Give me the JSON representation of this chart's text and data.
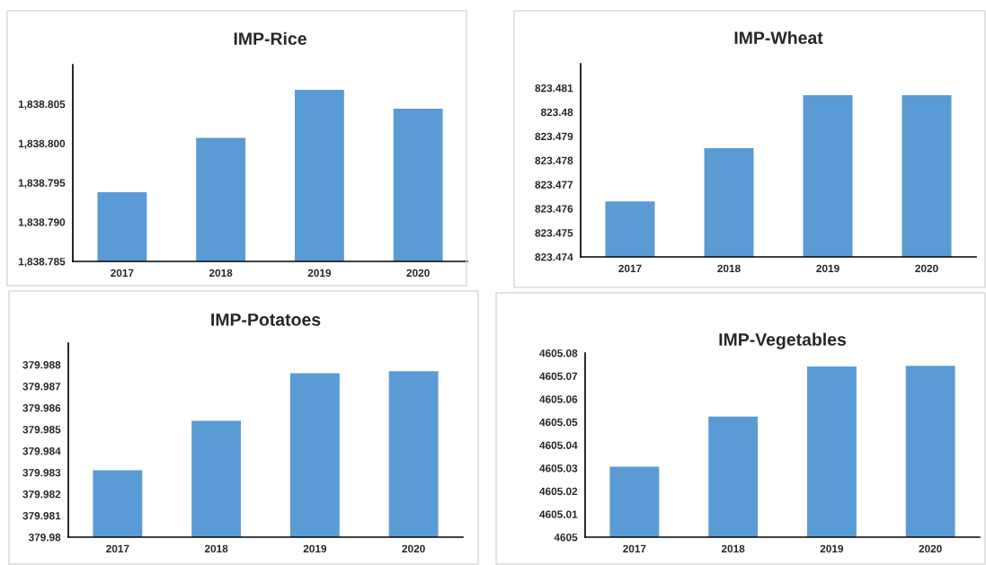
{
  "chart_data": [
    {
      "type": "bar",
      "title": "IMP-Rice",
      "categories": [
        "2017",
        "2018",
        "2019",
        "2020"
      ],
      "values": [
        1838.7938,
        1838.8007,
        1838.8068,
        1838.8044
      ],
      "color": "#5b9bd5",
      "ylim": [
        1838.785,
        1838.81
      ],
      "yticks": [
        {
          "value": 1838.785,
          "label": "1,838.785"
        },
        {
          "value": 1838.79,
          "label": "1,838.790"
        },
        {
          "value": 1838.795,
          "label": "1,838.795"
        },
        {
          "value": 1838.8,
          "label": "1,838.800"
        },
        {
          "value": 1838.805,
          "label": "1,838.805"
        }
      ]
    },
    {
      "type": "bar",
      "title": "IMP-Wheat",
      "categories": [
        "2017",
        "2018",
        "2019",
        "2020"
      ],
      "values": [
        823.4763,
        823.4785,
        823.4807,
        823.4807
      ],
      "color": "#5b9bd5",
      "ylim": [
        823.474,
        823.482
      ],
      "yticks": [
        823.474,
        823.475,
        823.476,
        823.477,
        823.478,
        823.479,
        823.48,
        823.481
      ]
    },
    {
      "type": "bar",
      "title": "IMP-Potatoes",
      "categories": [
        "2017",
        "2018",
        "2019",
        "2020"
      ],
      "values": [
        379.9831,
        379.9854,
        379.9876,
        379.9877
      ],
      "color": "#5b9bd5",
      "ylim": [
        379.98,
        379.989
      ],
      "yticks": [
        379.98,
        379.981,
        379.982,
        379.983,
        379.984,
        379.985,
        379.986,
        379.987,
        379.988
      ]
    },
    {
      "type": "bar",
      "title": "IMP-Vegetables",
      "categories": [
        "2017",
        "2018",
        "2019",
        "2020"
      ],
      "values": [
        4605.0306,
        4605.0524,
        4605.0741,
        4605.0744
      ],
      "color": "#5b9bd5",
      "ylim": [
        4605,
        4605.08
      ],
      "yticks": [
        4605,
        4605.01,
        4605.02,
        4605.03,
        4605.04,
        4605.05,
        4605.06,
        4605.07,
        4605.08
      ]
    }
  ]
}
